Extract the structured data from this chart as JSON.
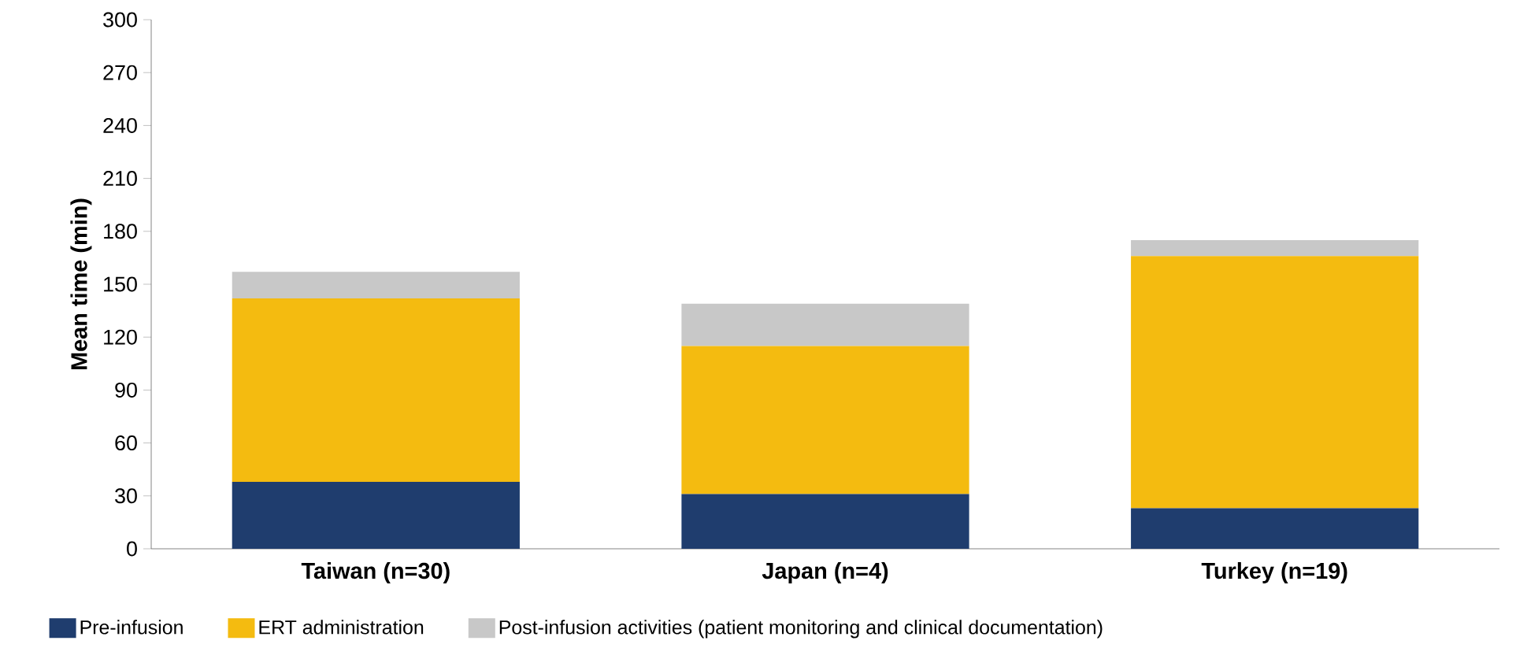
{
  "chart_data": {
    "type": "bar",
    "stacked": true,
    "ylabel": "Mean time (min)",
    "categories": [
      "Taiwan (n=30)",
      "Japan (n=4)",
      "Turkey (n=19)"
    ],
    "series": [
      {
        "name": "Pre-infusion",
        "color": "#1f3d6e",
        "values": [
          38,
          31,
          23
        ]
      },
      {
        "name": "ERT administration",
        "color": "#f4bb10",
        "values": [
          104,
          84,
          143
        ]
      },
      {
        "name": "Post-infusion activities (patient monitoring and clinical documentation)",
        "color": "#c8c8c8",
        "values": [
          15,
          24,
          9
        ]
      }
    ],
    "ylim": [
      0,
      300
    ],
    "yticks": [
      0,
      30,
      60,
      90,
      120,
      150,
      180,
      210,
      240,
      270,
      300
    ],
    "grid": false,
    "legend": "bottom"
  }
}
